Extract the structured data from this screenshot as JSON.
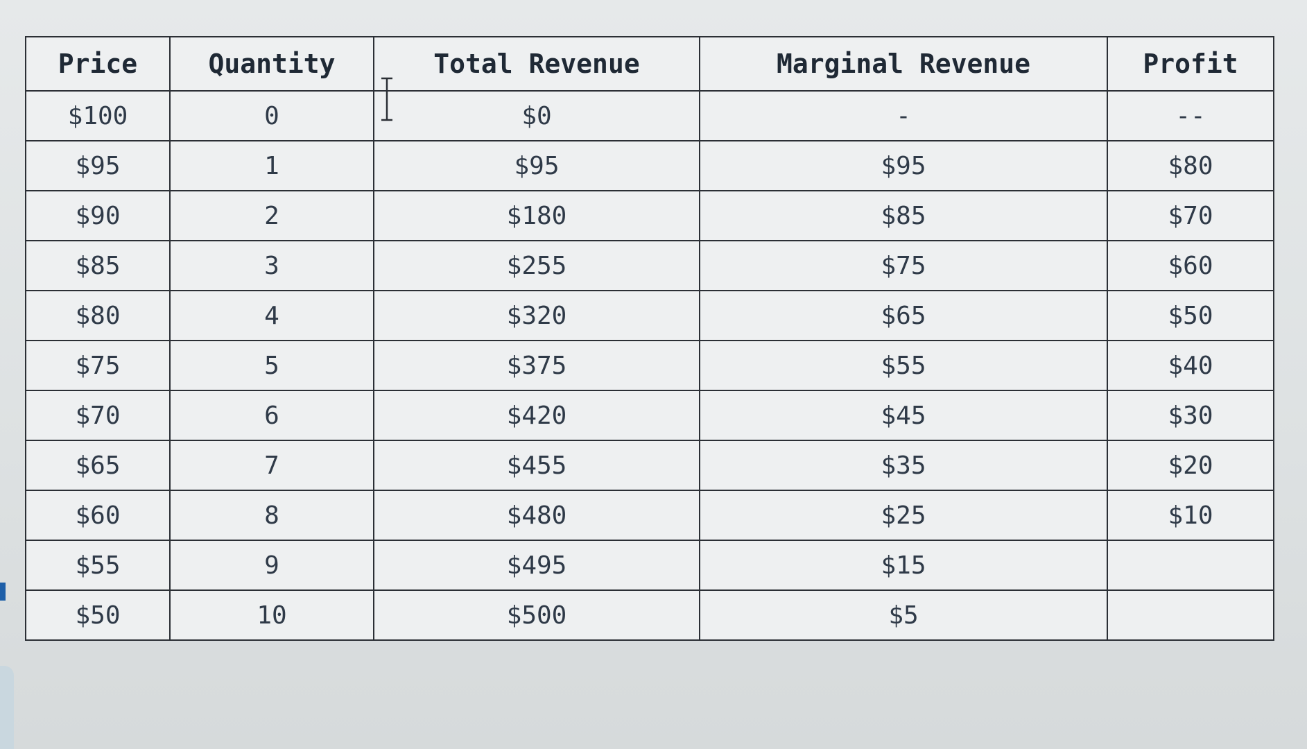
{
  "table": {
    "headers": [
      "Price",
      "Quantity",
      "Total Revenue",
      "Marginal Revenue",
      "Profit"
    ],
    "rows": [
      [
        "$100",
        "0",
        "$0",
        "-",
        "--"
      ],
      [
        "$95",
        "1",
        "$95",
        "$95",
        "$80"
      ],
      [
        "$90",
        "2",
        "$180",
        "$85",
        "$70"
      ],
      [
        "$85",
        "3",
        "$255",
        "$75",
        "$60"
      ],
      [
        "$80",
        "4",
        "$320",
        "$65",
        "$50"
      ],
      [
        "$75",
        "5",
        "$375",
        "$55",
        "$40"
      ],
      [
        "$70",
        "6",
        "$420",
        "$45",
        "$30"
      ],
      [
        "$65",
        "7",
        "$455",
        "$35",
        "$20"
      ],
      [
        "$60",
        "8",
        "$480",
        "$25",
        "$10"
      ],
      [
        "$55",
        "9",
        "$495",
        "$15",
        ""
      ],
      [
        "$50",
        "10",
        "$500",
        "$5",
        ""
      ]
    ]
  },
  "icons": {
    "cursor": "text-cursor-icon"
  },
  "colors": {
    "border": "#2b2f35",
    "text": "#2f3a48",
    "background": "#eef0f1"
  }
}
